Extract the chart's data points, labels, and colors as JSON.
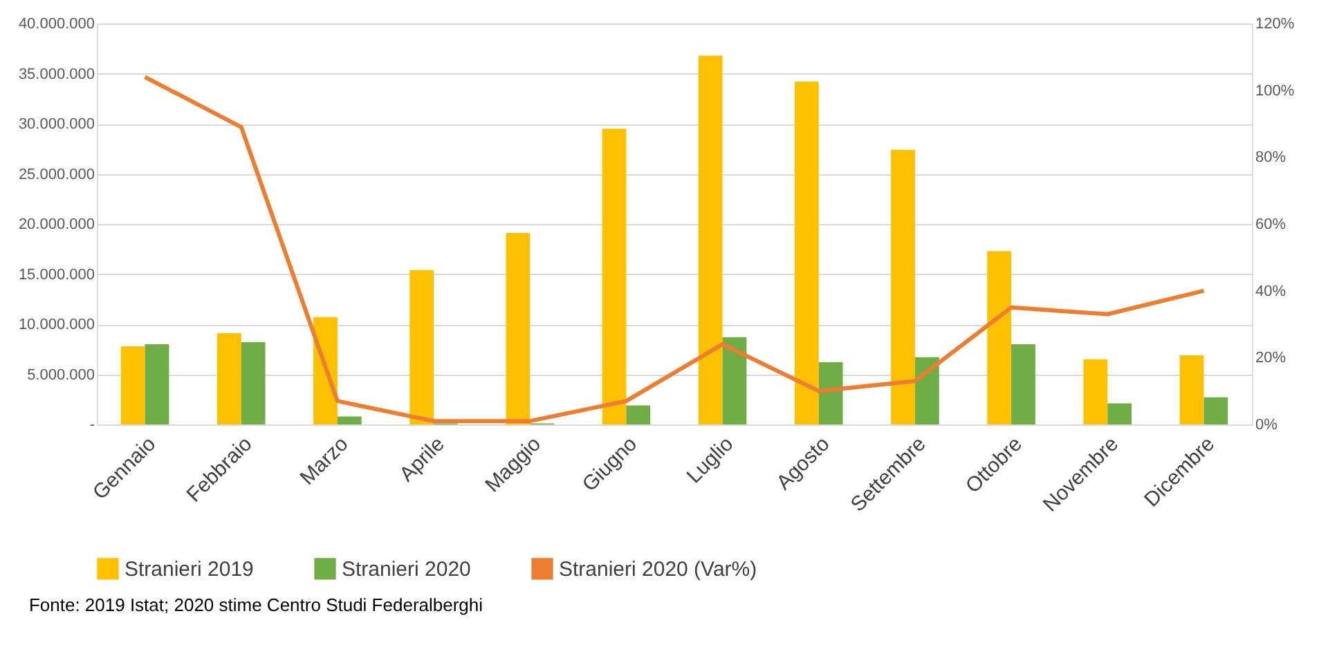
{
  "chart_data": {
    "type": "bar",
    "categories": [
      "Gennaio",
      "Febbraio",
      "Marzo",
      "Aprile",
      "Maggio",
      "Giugno",
      "Luglio",
      "Agosto",
      "Settembre",
      "Ottobre",
      "Novembre",
      "Dicembre"
    ],
    "series": [
      {
        "name": "Stranieri 2019",
        "color": "#ffc000",
        "values": [
          7800000,
          9100000,
          10700000,
          15400000,
          19100000,
          29500000,
          36800000,
          34200000,
          27400000,
          17300000,
          6500000,
          6900000
        ]
      },
      {
        "name": "Stranieri 2020",
        "color": "#70ad47",
        "values": [
          8000000,
          8200000,
          800000,
          100000,
          100000,
          1900000,
          8700000,
          6200000,
          6700000,
          8000000,
          2100000,
          2700000
        ]
      },
      {
        "name": "Stranieri 2020 (Var%)",
        "color": "#ed7d31",
        "type": "line",
        "axis": "y2",
        "values": [
          104,
          89,
          7,
          1,
          1,
          7,
          24,
          10,
          13,
          35,
          33,
          40
        ]
      }
    ],
    "ylim": [
      0,
      40000000
    ],
    "yticks": [
      {
        "value": 0,
        "label": "-"
      },
      {
        "value": 5000000,
        "label": "5.000.000"
      },
      {
        "value": 10000000,
        "label": "10.000.000"
      },
      {
        "value": 15000000,
        "label": "15.000.000"
      },
      {
        "value": 20000000,
        "label": "20.000.000"
      },
      {
        "value": 25000000,
        "label": "25.000.000"
      },
      {
        "value": 30000000,
        "label": "30.000.000"
      },
      {
        "value": 35000000,
        "label": "35.000.000"
      },
      {
        "value": 40000000,
        "label": "40.000.000"
      }
    ],
    "y2lim": [
      0,
      120
    ],
    "y2ticks": [
      {
        "value": 0,
        "label": "0%"
      },
      {
        "value": 20,
        "label": "20%"
      },
      {
        "value": 40,
        "label": "40%"
      },
      {
        "value": 60,
        "label": "60%"
      },
      {
        "value": 80,
        "label": "80%"
      },
      {
        "value": 100,
        "label": "100%"
      },
      {
        "value": 120,
        "label": "120%"
      }
    ],
    "grid": "y",
    "legend": "bottom",
    "marker": "none",
    "line_style": "solid",
    "annotations": [
      "Fonte: 2019 Istat; 2020 stime Centro Studi Federalberghi"
    ]
  }
}
